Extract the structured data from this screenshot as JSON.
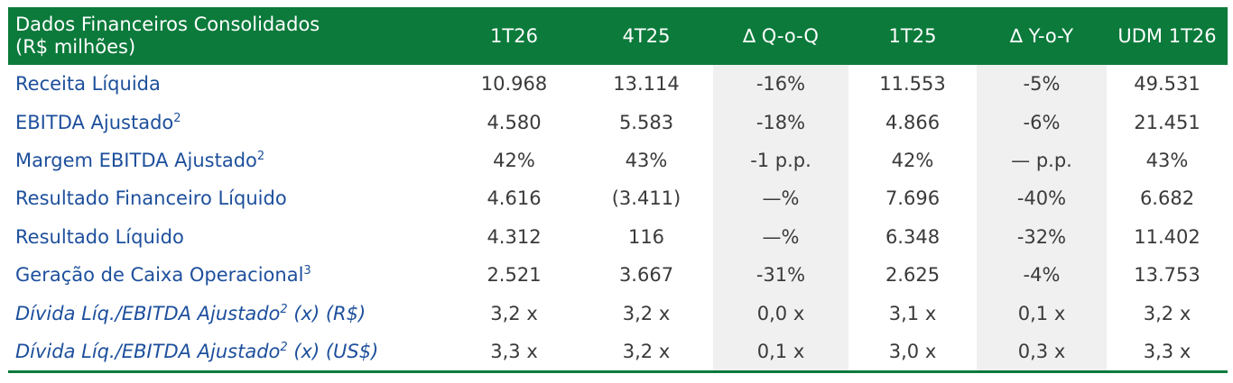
{
  "header": {
    "title_line1": "Dados Financeiros Consolidados",
    "title_line2": "(R$ milhões)",
    "columns": [
      "1T26",
      "4T25",
      "∆ Q-o-Q",
      "1T25",
      "∆ Y-o-Y",
      "UDM 1T26"
    ]
  },
  "rows": [
    {
      "label": "Receita Líquida",
      "sup": "",
      "suffix": "",
      "values": [
        "10.968",
        "13.114",
        "-16%",
        "11.553",
        "-5%",
        "49.531"
      ]
    },
    {
      "label": "EBITDA Ajustado",
      "sup": "2",
      "suffix": "",
      "values": [
        "4.580",
        "5.583",
        "-18%",
        "4.866",
        "-6%",
        "21.451"
      ]
    },
    {
      "label": "Margem EBITDA Ajustado",
      "sup": "2",
      "suffix": "",
      "values": [
        "42%",
        "43%",
        "-1 p.p.",
        "42%",
        "— p.p.",
        "43%"
      ]
    },
    {
      "label": "Resultado Financeiro Líquido",
      "sup": "",
      "suffix": "",
      "values": [
        "4.616",
        "(3.411)",
        "—%",
        "7.696",
        "-40%",
        "6.682"
      ]
    },
    {
      "label": "Resultado Líquido",
      "sup": "",
      "suffix": "",
      "values": [
        "4.312",
        "116",
        "—%",
        "6.348",
        "-32%",
        "11.402"
      ]
    },
    {
      "label": "Geração de Caixa Operacional",
      "sup": "3",
      "suffix": "",
      "values": [
        "2.521",
        "3.667",
        "-31%",
        "2.625",
        "-4%",
        "13.753"
      ]
    },
    {
      "label": "Dívida Líq./EBITDA Ajustado",
      "sup": "2",
      "suffix": " (x) (R$)",
      "values": [
        "3,2 x",
        "3,2 x",
        "0,0 x",
        "3,1 x",
        "0,1 x",
        "3,2 x"
      ]
    },
    {
      "label": "Dívida Líq./EBITDA Ajustado",
      "sup": "2",
      "suffix": " (x) (US$)",
      "values": [
        "3,3 x",
        "3,2 x",
        "0,1 x",
        "3,0 x",
        "0,3 x",
        "3,3 x"
      ]
    }
  ],
  "colors": {
    "header_bg": "#0b7a3b",
    "label_text": "#1d4f9c",
    "value_text": "#3a3a3a",
    "shaded_col": "#f0f0f0"
  }
}
